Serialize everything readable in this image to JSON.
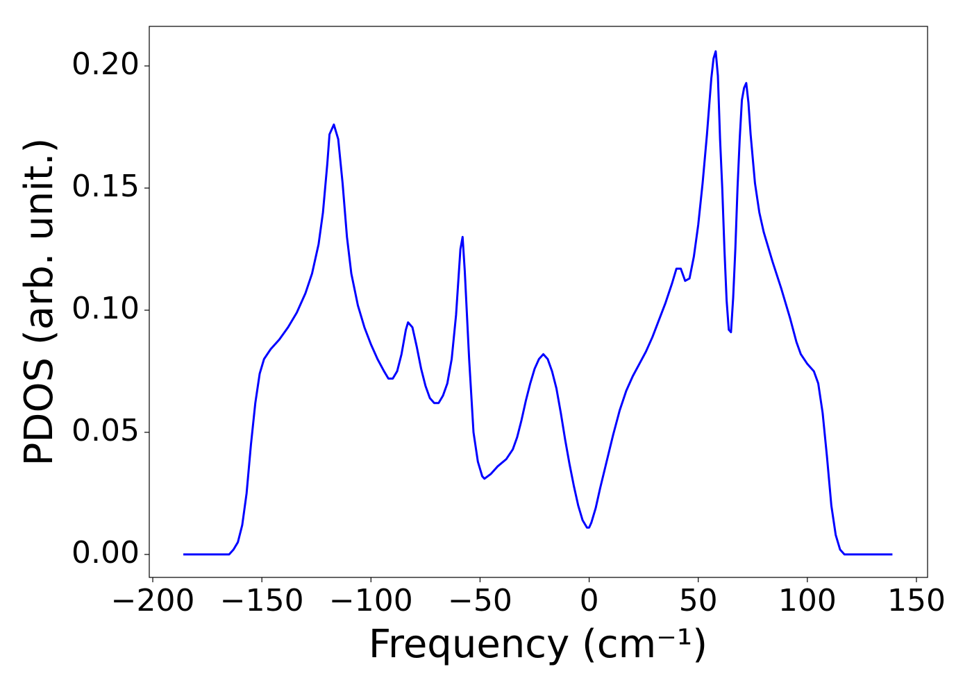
{
  "chart_data": {
    "type": "line",
    "xlabel": "Frequency (cm⁻¹)",
    "ylabel": "PDOS (arb. unit.)",
    "x": [
      -186,
      -165,
      -163,
      -161,
      -159,
      -157,
      -155,
      -153,
      -151,
      -149,
      -146,
      -142,
      -138,
      -134,
      -130,
      -127,
      -124,
      -122,
      -120,
      -119,
      -117,
      -115,
      -113,
      -111,
      -109,
      -106,
      -103,
      -100,
      -97,
      -94,
      -92,
      -90,
      -88,
      -86,
      -84,
      -83,
      -81,
      -79,
      -77,
      -75,
      -73,
      -71,
      -69,
      -67,
      -65,
      -63,
      -61,
      -59,
      -58,
      -57,
      -55,
      -53,
      -51,
      -49,
      -48,
      -45,
      -42,
      -38,
      -35,
      -33,
      -31,
      -29,
      -27,
      -25,
      -23,
      -21,
      -19,
      -17,
      -15,
      -13,
      -11,
      -9,
      -7,
      -5,
      -3,
      -1,
      0,
      1,
      3,
      5,
      8,
      11,
      14,
      17,
      20,
      23,
      26,
      29,
      32,
      35,
      38,
      40,
      42,
      44,
      46,
      48,
      50,
      52,
      54,
      56,
      57,
      58,
      59,
      60,
      61,
      62,
      63,
      64,
      65,
      66,
      67,
      68,
      69,
      70,
      71,
      72,
      73,
      74,
      76,
      78,
      80,
      84,
      88,
      92,
      95,
      97,
      100,
      103,
      105,
      107,
      109,
      111,
      113,
      115,
      117,
      120,
      139
    ],
    "series": [
      {
        "color": "#0000ff",
        "values": [
          0,
          0,
          0.002,
          0.005,
          0.012,
          0.025,
          0.045,
          0.062,
          0.074,
          0.08,
          0.084,
          0.088,
          0.093,
          0.099,
          0.107,
          0.115,
          0.127,
          0.14,
          0.16,
          0.172,
          0.176,
          0.17,
          0.152,
          0.13,
          0.115,
          0.102,
          0.093,
          0.086,
          0.08,
          0.075,
          0.072,
          0.072,
          0.075,
          0.082,
          0.092,
          0.095,
          0.093,
          0.085,
          0.076,
          0.069,
          0.064,
          0.062,
          0.062,
          0.065,
          0.07,
          0.08,
          0.098,
          0.125,
          0.13,
          0.116,
          0.08,
          0.05,
          0.038,
          0.032,
          0.031,
          0.033,
          0.036,
          0.039,
          0.043,
          0.048,
          0.055,
          0.063,
          0.07,
          0.076,
          0.08,
          0.082,
          0.08,
          0.075,
          0.068,
          0.058,
          0.047,
          0.037,
          0.028,
          0.02,
          0.014,
          0.011,
          0.011,
          0.013,
          0.019,
          0.027,
          0.038,
          0.049,
          0.059,
          0.067,
          0.073,
          0.078,
          0.083,
          0.089,
          0.096,
          0.103,
          0.111,
          0.117,
          0.117,
          0.112,
          0.113,
          0.122,
          0.135,
          0.152,
          0.172,
          0.195,
          0.203,
          0.206,
          0.196,
          0.17,
          0.15,
          0.125,
          0.104,
          0.092,
          0.091,
          0.105,
          0.125,
          0.15,
          0.17,
          0.186,
          0.191,
          0.193,
          0.185,
          0.172,
          0.152,
          0.14,
          0.132,
          0.12,
          0.109,
          0.097,
          0.087,
          0.082,
          0.078,
          0.075,
          0.07,
          0.058,
          0.04,
          0.02,
          0.008,
          0.002,
          0,
          0,
          0
        ]
      }
    ],
    "xlim": [
      -201.6,
      155.1
    ],
    "ylim": [
      -0.0094,
      0.2162
    ],
    "xticks": [
      {
        "value": -200,
        "label": "−200"
      },
      {
        "value": -150,
        "label": "−150"
      },
      {
        "value": -100,
        "label": "−100"
      },
      {
        "value": -50,
        "label": "−50"
      },
      0,
      50,
      100,
      150
    ],
    "yticks": [
      {
        "value": 0,
        "label": "0.00"
      },
      {
        "value": 0.05,
        "label": "0.05"
      },
      {
        "value": 0.1,
        "label": "0.10"
      },
      {
        "value": 0.15,
        "label": "0.15"
      },
      {
        "value": 0.2,
        "label": "0.20"
      }
    ],
    "grid": false
  }
}
